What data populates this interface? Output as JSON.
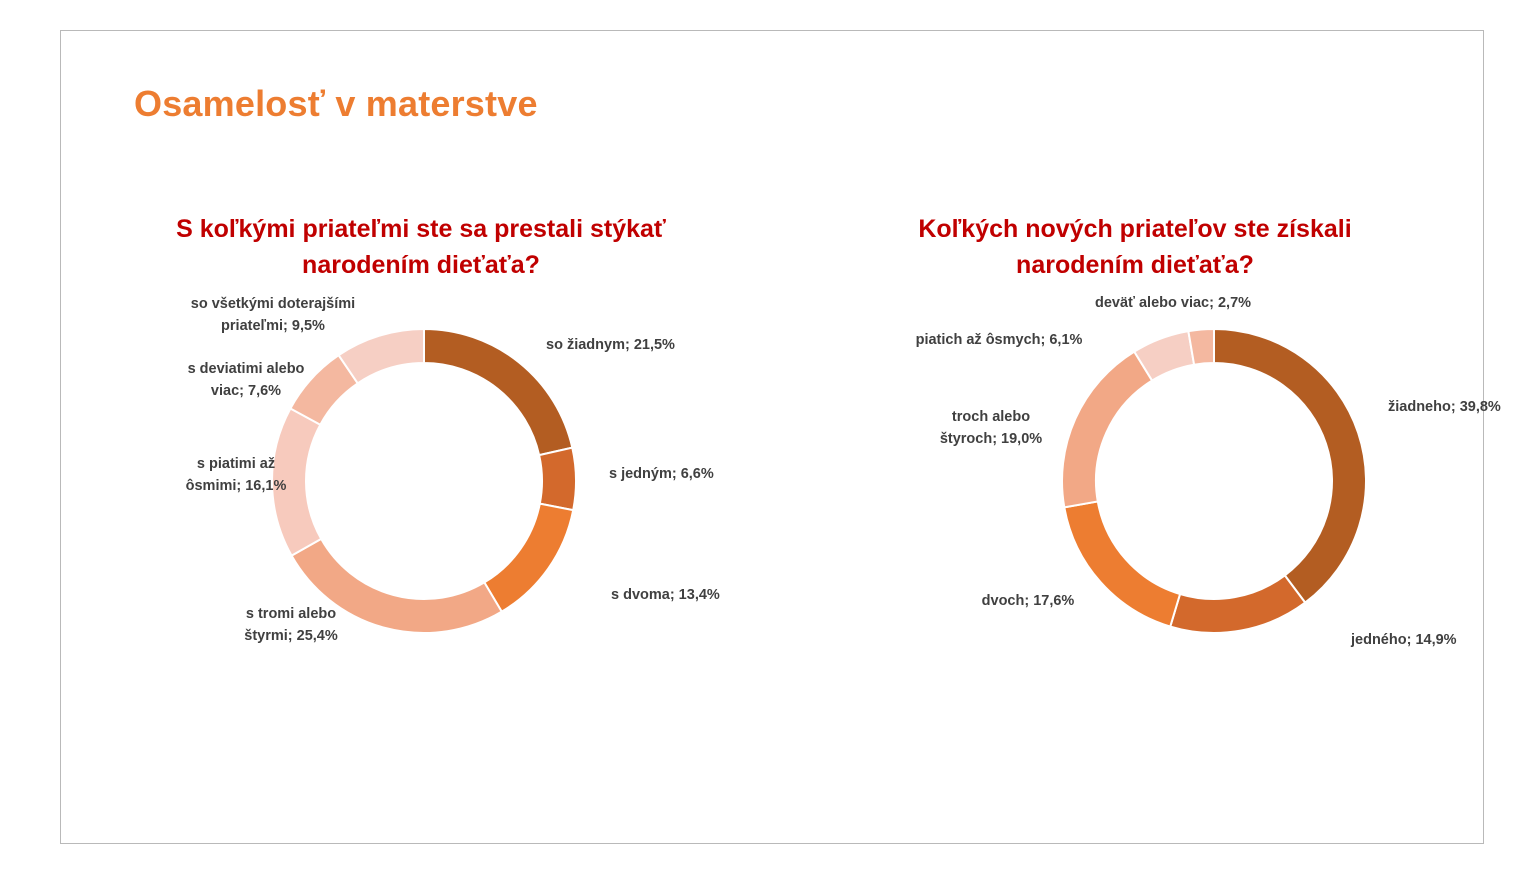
{
  "slide": {
    "title": "Osamelosť v materstve"
  },
  "colors": {
    "title": "#ed7d31",
    "chart_title": "#c00000",
    "label": "#404040",
    "slice_palette": [
      "#b35d22",
      "#d3692c",
      "#ed7d31",
      "#f2a886",
      "#f4b8a0",
      "#f7cabd",
      "#f6cfc4"
    ]
  },
  "chart_data": [
    {
      "type": "pie",
      "donut": true,
      "title_lines": [
        "S koľkými priateľmi ste sa prestali stýkať",
        "narodením dieťaťa?"
      ],
      "slices": [
        {
          "label_lines": [
            "so žiadnym; 21,5%"
          ],
          "value": 21.5,
          "color": "#b35d22"
        },
        {
          "label_lines": [
            "s jedným; 6,6%"
          ],
          "value": 6.6,
          "color": "#d3692c"
        },
        {
          "label_lines": [
            "s dvoma; 13,4%"
          ],
          "value": 13.4,
          "color": "#ed7d31"
        },
        {
          "label_lines": [
            "s tromi alebo",
            "štyrmi; 25,4%"
          ],
          "value": 25.4,
          "color": "#f2a886"
        },
        {
          "label_lines": [
            "s piatimi až",
            "ôsmimi; 16,1%"
          ],
          "value": 16.1,
          "color": "#f7cabd"
        },
        {
          "label_lines": [
            "s deviatimi alebo",
            "viac; 7,6%"
          ],
          "value": 7.6,
          "color": "#f4b8a0"
        },
        {
          "label_lines": [
            "so všetkými doterajšími",
            "priateľmi; 9,5%"
          ],
          "value": 9.5,
          "color": "#f6cfc4"
        }
      ]
    },
    {
      "type": "pie",
      "donut": true,
      "title_lines": [
        "Koľkých nových priateľov ste získali",
        "narodením dieťaťa?"
      ],
      "slices": [
        {
          "label_lines": [
            "žiadneho; 39,8%"
          ],
          "value": 39.8,
          "color": "#b35d22"
        },
        {
          "label_lines": [
            "jedného; 14,9%"
          ],
          "value": 14.9,
          "color": "#d3692c"
        },
        {
          "label_lines": [
            "dvoch; 17,6%"
          ],
          "value": 17.6,
          "color": "#ed7d31"
        },
        {
          "label_lines": [
            "troch alebo",
            "štyroch; 19,0%"
          ],
          "value": 19.0,
          "color": "#f2a886"
        },
        {
          "label_lines": [
            "piatich až ôsmych; 6,1%"
          ],
          "value": 6.1,
          "color": "#f6cfc4"
        },
        {
          "label_lines": [
            "deväť alebo viac; 2,7%"
          ],
          "value": 2.7,
          "color": "#f4b8a0"
        }
      ]
    }
  ]
}
